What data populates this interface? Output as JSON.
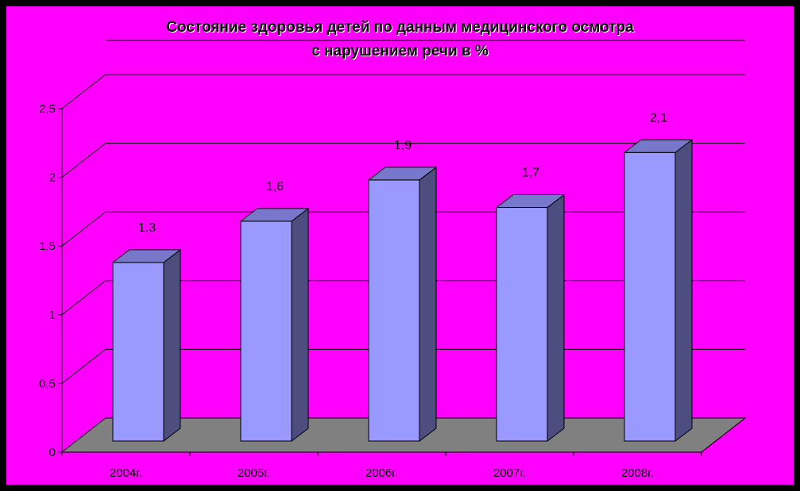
{
  "chart_data": {
    "type": "bar",
    "title_lines": [
      "Состояние здоровья детей по данным медицинского осмотра",
      "с нарушением речи в %"
    ],
    "categories": [
      "2004г.",
      "2005г.",
      "2006г.",
      "2007г.",
      "2008г."
    ],
    "values": [
      1.3,
      1.6,
      1.9,
      1.7,
      2.1
    ],
    "value_labels": [
      "1,3",
      "1,6",
      "1,9",
      "1,7",
      "2,1"
    ],
    "y_ticks": [
      0,
      0.5,
      1,
      1.5,
      2,
      2.5
    ],
    "y_tick_labels": [
      "0",
      "0,5",
      "1",
      "1,5",
      "2",
      "2,5"
    ],
    "ylim": [
      0,
      2.5
    ],
    "xlabel": "",
    "ylabel": "",
    "grid": true,
    "legend": "none",
    "three_d": true,
    "colors": {
      "background": "#ff00ff",
      "frame": "#000000",
      "bar_front": "#9999ff",
      "bar_side": "#4d4d80",
      "bar_top": "#7777cc",
      "floor": "#808080",
      "gridline": "#000000",
      "text": "#000000"
    }
  }
}
